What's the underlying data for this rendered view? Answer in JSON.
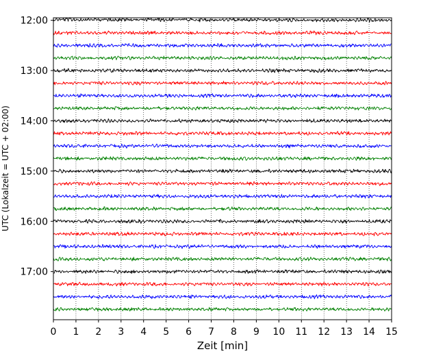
{
  "chart_data": {
    "type": "line",
    "title": "",
    "xlabel": "Zeit  [min]",
    "ylabel": "UTC (Lokalzeit = UTC + 02:00)",
    "xlim": [
      0,
      15
    ],
    "ylim": [
      17.9583,
      11.95
    ],
    "x_ticks": [
      0,
      1,
      2,
      3,
      4,
      5,
      6,
      7,
      8,
      9,
      10,
      11,
      12,
      13,
      14,
      15
    ],
    "y_ticks": [
      {
        "value": 12,
        "label": "12:00"
      },
      {
        "value": 13,
        "label": "13:00"
      },
      {
        "value": 14,
        "label": "14:00"
      },
      {
        "value": 15,
        "label": "15:00"
      },
      {
        "value": 16,
        "label": "16:00"
      },
      {
        "value": 17,
        "label": "17:00"
      }
    ],
    "grid": "vertical-dotted",
    "trace_colors": [
      "#000000",
      "#ff0000",
      "#0000ff",
      "#008000"
    ],
    "trace_minutes": 15,
    "trace_interval_hours": 0.25,
    "traces_start": [
      12,
      12.25,
      12.5,
      12.75,
      13,
      13.25,
      13.5,
      13.75,
      14,
      14.25,
      14.5,
      14.75,
      15,
      15.25,
      15.5,
      15.75,
      16,
      16.25,
      16.5,
      16.75,
      17,
      17.25,
      17.5,
      17.75
    ]
  }
}
